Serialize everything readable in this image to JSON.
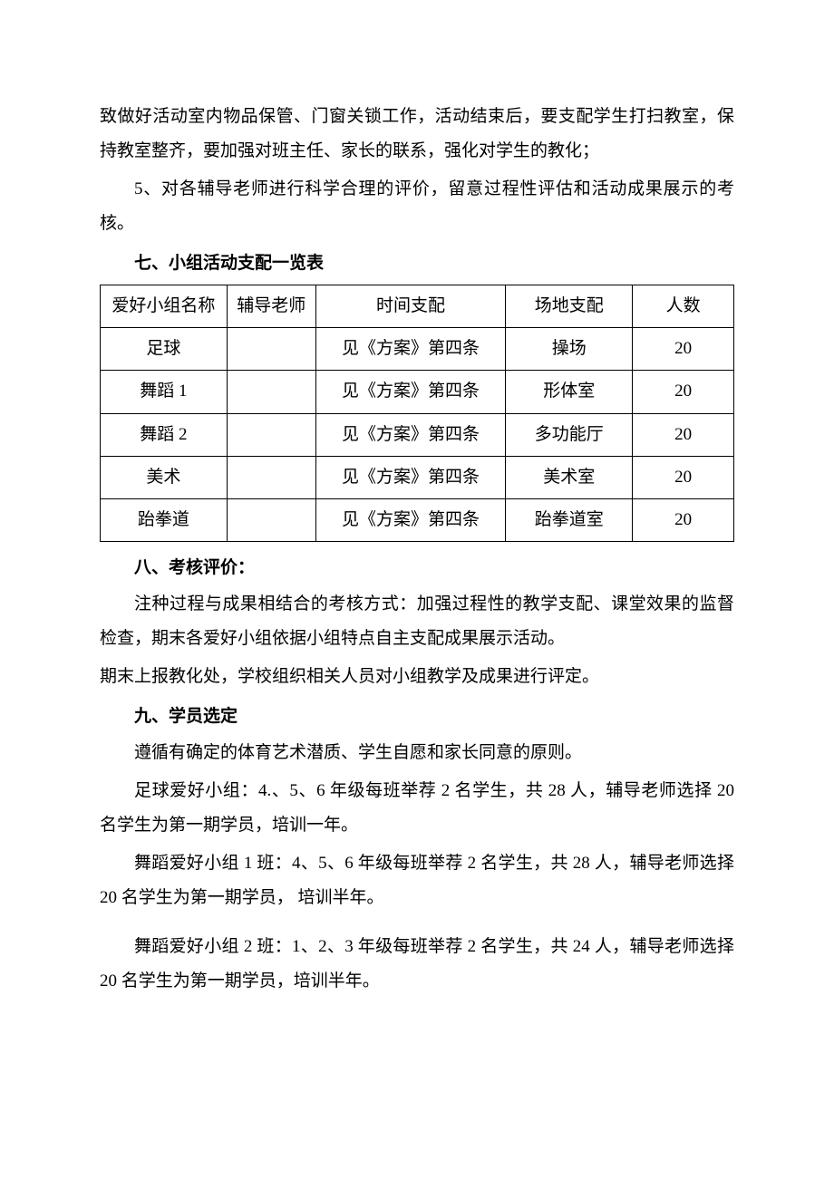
{
  "intro": {
    "p1": "致做好活动室内物品保管、门窗关锁工作，活动结束后，要支配学生打扫教室，保持教室整齐，要加强对班主任、家长的联系，强化对学生的教化；",
    "p2": "5、对各辅导老师进行科学合理的评价，留意过程性评估和活动成果展示的考核。"
  },
  "section7": {
    "heading": "七、小组活动支配一览表",
    "columns": [
      "爱好小组名称",
      "辅导老师",
      "时间支配",
      "场地支配",
      "人数"
    ],
    "rows": [
      [
        "足球",
        "",
        "见《方案》第四条",
        "操场",
        "20"
      ],
      [
        "舞蹈 1",
        "",
        "见《方案》第四条",
        "形体室",
        "20"
      ],
      [
        "舞蹈 2",
        "",
        "见《方案》第四条",
        "多功能厅",
        "20"
      ],
      [
        "美术",
        "",
        "见《方案》第四条",
        "美术室",
        "20"
      ],
      [
        "跆拳道",
        "",
        "见《方案》第四条",
        "跆拳道室",
        "20"
      ]
    ]
  },
  "section8": {
    "heading": "八、考核评价：",
    "p1": "注种过程与成果相结合的考核方式：加强过程性的教学支配、课堂效果的监督检查，期末各爱好小组依据小组特点自主支配成果展示活动。",
    "p2": "期末上报教化处，学校组织相关人员对小组教学及成果进行评定。"
  },
  "section9": {
    "heading": "九、学员选定",
    "p1": "遵循有确定的体育艺术潜质、学生自愿和家长同意的原则。",
    "p2": "足球爱好小组：4.、5、6 年级每班举荐 2 名学生，共 28 人，辅导老师选择 20 名学生为第一期学员，培训一年。",
    "p3": "舞蹈爱好小组 1 班：4、5、6 年级每班举荐 2 名学生，共 28 人，辅导老师选择 20 名学生为第一期学员， 培训半年。",
    "p4": "舞蹈爱好小组 2 班：1、2、3 年级每班举荐 2 名学生，共 24 人，辅导老师选择 20 名学生为第一期学员，培训半年。"
  },
  "style": {
    "font_family": "SimSun",
    "font_size_pt": 14,
    "line_height": 2.0,
    "text_color": "#000000",
    "background_color": "#ffffff",
    "border_color": "#000000",
    "col_widths_pct": {
      "name": 20,
      "teacher": 14,
      "time": 30,
      "place": 20,
      "number": 16
    }
  }
}
